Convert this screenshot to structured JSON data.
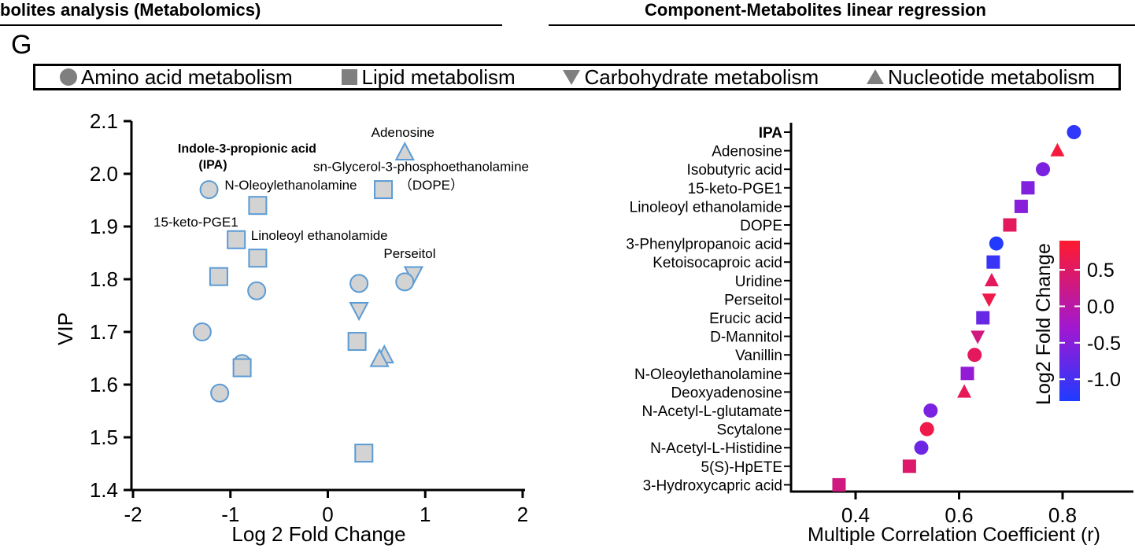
{
  "headers": {
    "left": "bolites analysis (Metabolomics)",
    "right": "Component-Metabolites linear regression"
  },
  "panel_label": "G",
  "legend": [
    {
      "label": "Amino acid metabolism",
      "icon": "circle-icon"
    },
    {
      "label": "Lipid metabolism",
      "icon": "square-icon"
    },
    {
      "label": "Carbohydrate metabolism",
      "icon": "triangle-down-icon"
    },
    {
      "label": "Nucleotide metabolism",
      "icon": "triangle-up-icon"
    }
  ],
  "colors": {
    "marker_fill": "#d3d3d3",
    "marker_stroke": "#5b9bd5",
    "legend_icon": "#7f7f7f",
    "cmap_low": "#1f3bff",
    "cmap_high": "#ff1a2e"
  },
  "chart_data": [
    {
      "type": "scatter",
      "xlabel": "Log 2 Fold Change",
      "ylabel": "VIP",
      "xlim": [
        -2,
        2
      ],
      "ylim": [
        1.4,
        2.1
      ],
      "xticks": [
        -2,
        -1,
        0,
        1,
        2
      ],
      "xtick_labels": [
        "-2",
        "-1",
        "0",
        "1",
        "2"
      ],
      "yticks": [
        1.4,
        1.5,
        1.6,
        1.7,
        1.8,
        1.9,
        2.0,
        2.1
      ],
      "ytick_labels": [
        "1.4",
        "1.5",
        "1.6",
        "1.7",
        "1.8",
        "1.9",
        "2.0",
        "2.1"
      ],
      "points": [
        {
          "x": -1.22,
          "y": 1.97,
          "shape": "circle"
        },
        {
          "x": -0.72,
          "y": 1.94,
          "shape": "square"
        },
        {
          "x": -0.94,
          "y": 1.875,
          "shape": "square"
        },
        {
          "x": -0.72,
          "y": 1.84,
          "shape": "square"
        },
        {
          "x": -1.12,
          "y": 1.805,
          "shape": "square"
        },
        {
          "x": -0.73,
          "y": 1.778,
          "shape": "circle"
        },
        {
          "x": -1.29,
          "y": 1.7,
          "shape": "circle"
        },
        {
          "x": -0.88,
          "y": 1.64,
          "shape": "circle"
        },
        {
          "x": -0.88,
          "y": 1.632,
          "shape": "square"
        },
        {
          "x": -1.11,
          "y": 1.584,
          "shape": "circle"
        },
        {
          "x": 0.79,
          "y": 2.04,
          "shape": "triangle-up"
        },
        {
          "x": 0.57,
          "y": 1.97,
          "shape": "square"
        },
        {
          "x": 0.88,
          "y": 1.81,
          "shape": "triangle-down"
        },
        {
          "x": 0.79,
          "y": 1.795,
          "shape": "circle"
        },
        {
          "x": 0.32,
          "y": 1.792,
          "shape": "circle"
        },
        {
          "x": 0.32,
          "y": 1.742,
          "shape": "triangle-down"
        },
        {
          "x": 0.3,
          "y": 1.682,
          "shape": "square"
        },
        {
          "x": 0.58,
          "y": 1.655,
          "shape": "triangle-up"
        },
        {
          "x": 0.53,
          "y": 1.648,
          "shape": "triangle-up"
        },
        {
          "x": 0.37,
          "y": 1.47,
          "shape": "square"
        }
      ],
      "annotations": [
        {
          "text": "Adenosine",
          "x": 0.77,
          "y": 2.07,
          "bold": false,
          "anchor": "middle"
        },
        {
          "text": "Indole-3-propionic acid",
          "x": -1.54,
          "y": 2.04,
          "bold": true,
          "anchor": "start"
        },
        {
          "text": "(IPA)",
          "x": -1.18,
          "y": 2.01,
          "bold": true,
          "anchor": "middle"
        },
        {
          "text": "sn-Glycerol-3-phosphoethanolamine",
          "x": -0.15,
          "y": 2.005,
          "bold": false,
          "anchor": "start"
        },
        {
          "text": "N-Oleoylethanolamine",
          "x": -1.06,
          "y": 1.97,
          "bold": false,
          "anchor": "start"
        },
        {
          "text": "（DOPE）",
          "x": 0.73,
          "y": 1.97,
          "bold": false,
          "anchor": "start"
        },
        {
          "text": "15-keto-PGE1",
          "x": -1.79,
          "y": 1.9,
          "bold": false,
          "anchor": "start"
        },
        {
          "text": "Linoleoyl ethanolamide",
          "x": -0.79,
          "y": 1.875,
          "bold": false,
          "anchor": "start"
        },
        {
          "text": "Perseitol",
          "x": 0.84,
          "y": 1.84,
          "bold": false,
          "anchor": "middle"
        }
      ]
    },
    {
      "type": "scatter",
      "xlabel": "Multiple Correlation Coefficient (r)",
      "ylabel": "",
      "xlim": [
        0.31,
        0.87
      ],
      "xticks": [
        0.4,
        0.6,
        0.8
      ],
      "xtick_labels": [
        "0.4",
        "0.6",
        "0.8"
      ],
      "categories": [
        "IPA",
        "Adenosine",
        "Isobutyric acid",
        "15-keto-PGE1",
        "Linoleoyl ethanolamide",
        "DOPE",
        "3-Phenylpropanoic acid",
        "Ketoisocaproic acid",
        "Uridine",
        "Perseitol",
        "Erucic acid",
        "D-Mannitol",
        "Vanillin",
        "N-Oleoylethanolamine",
        "Deoxyadenosine",
        "N-Acetyl-L-glutamate",
        "Scytalone",
        "N-Acetyl-L-Histidine",
        "5(S)-HpETE",
        "3-Hydroxycapric acid"
      ],
      "bold_categories": [
        "IPA"
      ],
      "points": [
        {
          "r": 0.822,
          "log2fc": -1.18,
          "shape": "circle"
        },
        {
          "r": 0.79,
          "log2fc": 0.8,
          "shape": "triangle-up"
        },
        {
          "r": 0.762,
          "log2fc": -0.6,
          "shape": "circle"
        },
        {
          "r": 0.733,
          "log2fc": -0.55,
          "shape": "square"
        },
        {
          "r": 0.72,
          "log2fc": -0.5,
          "shape": "square"
        },
        {
          "r": 0.698,
          "log2fc": 0.55,
          "shape": "square"
        },
        {
          "r": 0.672,
          "log2fc": -1.28,
          "shape": "circle"
        },
        {
          "r": 0.666,
          "log2fc": -1.1,
          "shape": "square"
        },
        {
          "r": 0.663,
          "log2fc": 0.55,
          "shape": "triangle-up"
        },
        {
          "r": 0.658,
          "log2fc": 0.7,
          "shape": "triangle-down"
        },
        {
          "r": 0.646,
          "log2fc": -0.75,
          "shape": "square"
        },
        {
          "r": 0.636,
          "log2fc": 0.3,
          "shape": "triangle-down"
        },
        {
          "r": 0.63,
          "log2fc": 0.55,
          "shape": "circle"
        },
        {
          "r": 0.616,
          "log2fc": -0.4,
          "shape": "square"
        },
        {
          "r": 0.61,
          "log2fc": 0.6,
          "shape": "triangle-up"
        },
        {
          "r": 0.545,
          "log2fc": -0.6,
          "shape": "circle"
        },
        {
          "r": 0.538,
          "log2fc": 0.7,
          "shape": "circle"
        },
        {
          "r": 0.527,
          "log2fc": -0.7,
          "shape": "circle"
        },
        {
          "r": 0.504,
          "log2fc": 0.45,
          "shape": "square"
        },
        {
          "r": 0.368,
          "log2fc": 0.3,
          "shape": "square"
        }
      ],
      "colorbar": {
        "label": "Log2 Fold Change",
        "range": [
          -1.3,
          0.9
        ],
        "ticks": [
          0.5,
          0.0,
          -0.5,
          -1.0
        ],
        "tick_labels": [
          "0.5",
          "0.0",
          "-0.5",
          "-1.0"
        ]
      }
    }
  ]
}
